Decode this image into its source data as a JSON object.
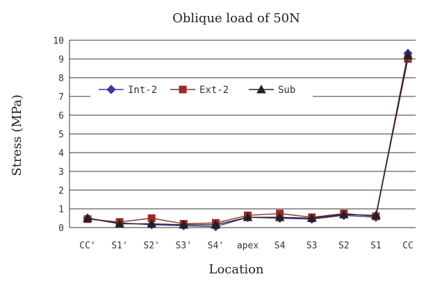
{
  "chart_data": {
    "type": "line",
    "title": "Oblique load of 50N",
    "xlabel": "Location",
    "ylabel": "Stress (MPa)",
    "ylim": [
      0,
      10
    ],
    "yticks": [
      0,
      1,
      2,
      3,
      4,
      5,
      6,
      7,
      8,
      9,
      10
    ],
    "grid": true,
    "legend_position": "top-left",
    "categories": [
      "CC'",
      "S1'",
      "S2'",
      "S3'",
      "S4'",
      "apex",
      "S4",
      "S3",
      "S2",
      "S1",
      "CC"
    ],
    "series": [
      {
        "name": "Int-2",
        "marker": "diamond",
        "color": "#3a3a9a",
        "values": [
          0.5,
          0.25,
          0.15,
          0.1,
          0.05,
          0.55,
          0.5,
          0.45,
          0.65,
          0.55,
          9.3
        ]
      },
      {
        "name": "Ext-2",
        "marker": "square",
        "color": "#9a2a2a",
        "values": [
          0.45,
          0.3,
          0.5,
          0.2,
          0.25,
          0.65,
          0.75,
          0.55,
          0.75,
          0.6,
          9.0
        ]
      },
      {
        "name": "Sub",
        "marker": "triangle",
        "color": "#222222",
        "values": [
          0.5,
          0.2,
          0.2,
          0.15,
          0.15,
          0.55,
          0.55,
          0.5,
          0.7,
          0.65,
          9.2
        ]
      }
    ]
  }
}
